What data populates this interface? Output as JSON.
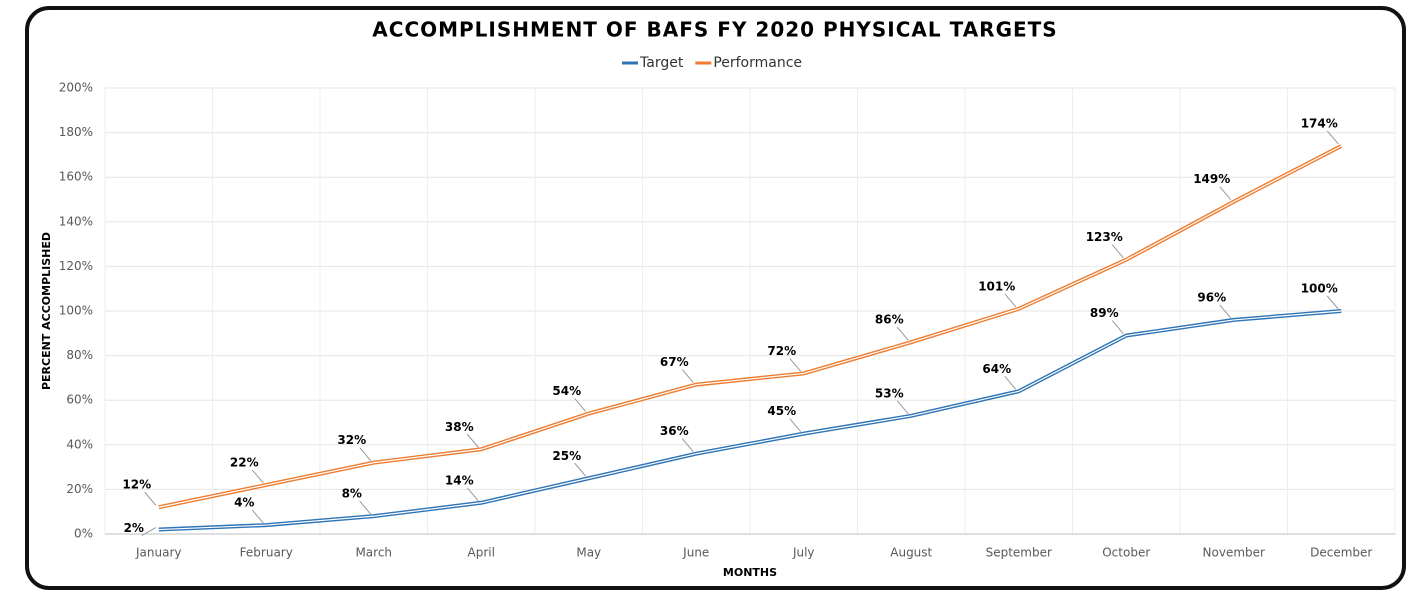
{
  "chart_data": {
    "type": "line",
    "title": "ACCOMPLISHMENT OF BAFS FY 2020 PHYSICAL TARGETS",
    "x_label": "MONTHS",
    "y_label": "PERCENT ACCOMPLISHED",
    "categories": [
      "January",
      "February",
      "March",
      "April",
      "May",
      "June",
      "July",
      "August",
      "September",
      "October",
      "November",
      "December"
    ],
    "series": [
      {
        "name": "Target",
        "color": "#2e75b6",
        "values": [
          2,
          4,
          8,
          14,
          25,
          36,
          45,
          53,
          64,
          89,
          96,
          100
        ],
        "value_labels": [
          "2%",
          "4%",
          "8%",
          "14%",
          "25%",
          "36%",
          "45%",
          "53%",
          "64%",
          "89%",
          "96%",
          "100%"
        ]
      },
      {
        "name": "Performance",
        "color": "#ed7d31",
        "values": [
          12,
          22,
          32,
          38,
          54,
          67,
          72,
          86,
          101,
          123,
          149,
          174
        ],
        "value_labels": [
          "12%",
          "22%",
          "32%",
          "38%",
          "54%",
          "67%",
          "72%",
          "86%",
          "101%",
          "123%",
          "149%",
          "174%"
        ]
      }
    ],
    "ylim": [
      0,
      200
    ],
    "yticks": [
      {
        "value": 0,
        "label": "0%"
      },
      {
        "value": 20,
        "label": "20%"
      },
      {
        "value": 40,
        "label": "40%"
      },
      {
        "value": 60,
        "label": "60%"
      },
      {
        "value": 80,
        "label": "80%"
      },
      {
        "value": 100,
        "label": "100%"
      },
      {
        "value": 120,
        "label": "120%"
      },
      {
        "value": 140,
        "label": "140%"
      },
      {
        "value": 160,
        "label": "160%"
      },
      {
        "value": 180,
        "label": "180%"
      },
      {
        "value": 200,
        "label": "200%"
      }
    ],
    "grid": true,
    "legend": "top"
  }
}
